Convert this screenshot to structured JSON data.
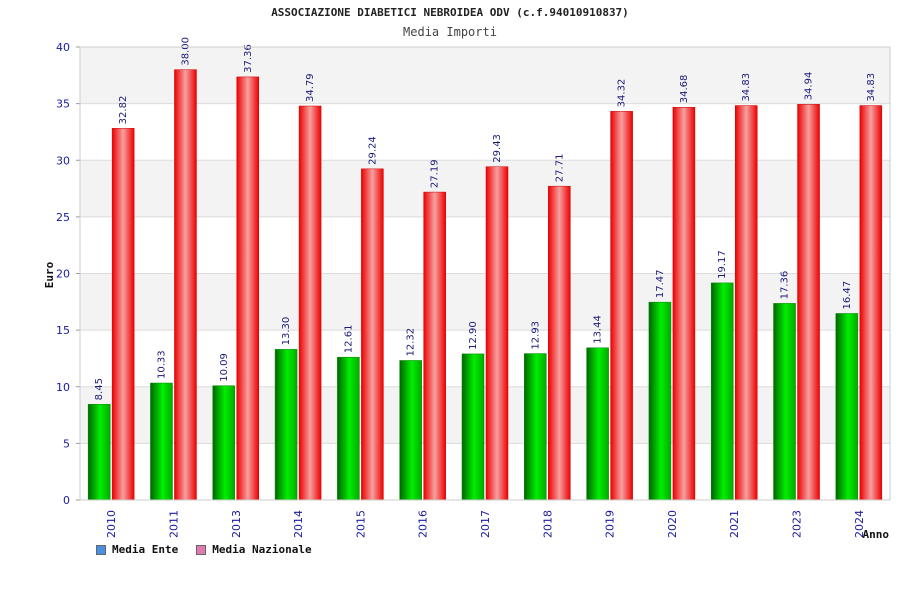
{
  "chart_data": {
    "type": "bar",
    "title": "ASSOCIAZIONE DIABETICI NEBROIDEA ODV (c.f.94010910837)",
    "subtitle": "Media Importi",
    "xlabel": "Anno",
    "ylabel": "Euro",
    "ylim": [
      0,
      40
    ],
    "yticks": [
      0,
      5,
      10,
      15,
      20,
      25,
      30,
      35,
      40
    ],
    "grid": true,
    "legend_position": "bottom-left",
    "categories": [
      "2010",
      "2011",
      "2013",
      "2014",
      "2015",
      "2016",
      "2017",
      "2018",
      "2019",
      "2020",
      "2021",
      "2023",
      "2024"
    ],
    "series": [
      {
        "name": "Media Ente",
        "color": "#00cc00",
        "values": [
          8.45,
          10.33,
          10.09,
          13.3,
          12.61,
          12.32,
          12.9,
          12.93,
          13.44,
          17.47,
          19.17,
          17.36,
          16.47
        ],
        "labels": [
          "8.45",
          "10.33",
          "10.09",
          "13.30",
          "12.61",
          "12.32",
          "12.90",
          "12.93",
          "13.44",
          "17.47",
          "19.17",
          "17.36",
          "16.47"
        ]
      },
      {
        "name": "Media Nazionale",
        "color": "#ff0000",
        "values": [
          32.82,
          38.0,
          37.36,
          34.79,
          29.24,
          27.19,
          29.43,
          27.71,
          34.32,
          34.68,
          34.83,
          34.94,
          34.83
        ],
        "labels": [
          "32.82",
          "38.00",
          "37.36",
          "34.79",
          "29.24",
          "27.19",
          "29.43",
          "27.71",
          "34.32",
          "34.68",
          "34.83",
          "34.94",
          "34.83"
        ]
      }
    ]
  },
  "legend": [
    {
      "label": "Media Ente",
      "color": "#4a90e2"
    },
    {
      "label": "Media Nazionale",
      "color": "#e07ab0"
    }
  ]
}
